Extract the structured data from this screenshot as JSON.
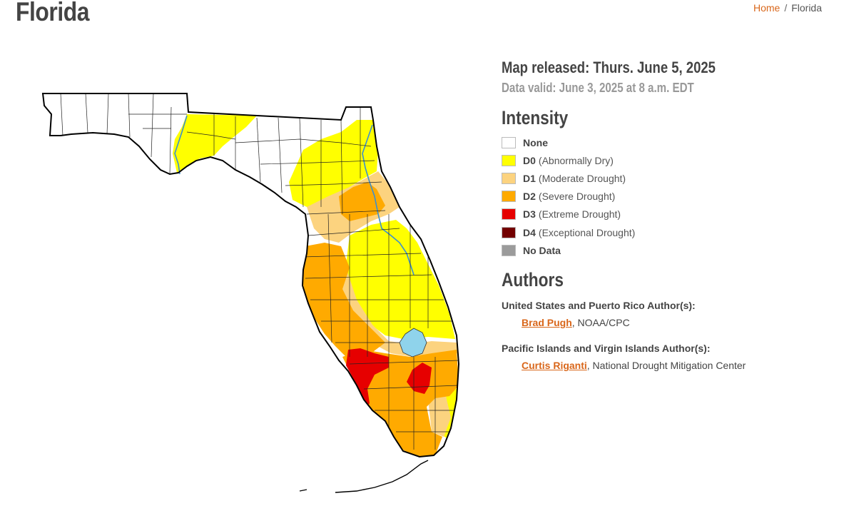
{
  "page": {
    "title": "Florida"
  },
  "breadcrumb": {
    "home": "Home",
    "separator": "/",
    "current": "Florida"
  },
  "map": {
    "released": "Map released: Thurs. June 5, 2025",
    "valid": "Data valid: June 3, 2025 at 8 a.m. EDT",
    "region": "Florida",
    "colors": {
      "none": "#ffffff",
      "D0": "#ffff00",
      "D1": "#fcd37f",
      "D2": "#ffaa00",
      "D3": "#e60000",
      "D4": "#730000",
      "no_data": "#9b9b9b",
      "water": "#8fd3eb",
      "outline": "#000000",
      "county_lines": "#333333"
    }
  },
  "intensity": {
    "heading": "Intensity",
    "items": [
      {
        "code": "None",
        "label": "",
        "color": "#ffffff"
      },
      {
        "code": "D0",
        "label": "(Abnormally Dry)",
        "color": "#ffff00"
      },
      {
        "code": "D1",
        "label": "(Moderate Drought)",
        "color": "#fcd37f"
      },
      {
        "code": "D2",
        "label": "(Severe Drought)",
        "color": "#ffaa00"
      },
      {
        "code": "D3",
        "label": "(Extreme Drought)",
        "color": "#e60000"
      },
      {
        "code": "D4",
        "label": "(Exceptional Drought)",
        "color": "#730000"
      },
      {
        "code": "No Data",
        "label": "",
        "color": "#9b9b9b"
      }
    ]
  },
  "authors": {
    "heading": "Authors",
    "groups": [
      {
        "heading": "United States and Puerto Rico Author(s):",
        "name": "Brad Pugh",
        "affiliation": ", NOAA/CPC"
      },
      {
        "heading": "Pacific Islands and Virgin Islands Author(s):",
        "name": "Curtis Riganti",
        "affiliation": ", National Drought Mitigation Center"
      }
    ]
  },
  "accent_color": "#d9671b"
}
